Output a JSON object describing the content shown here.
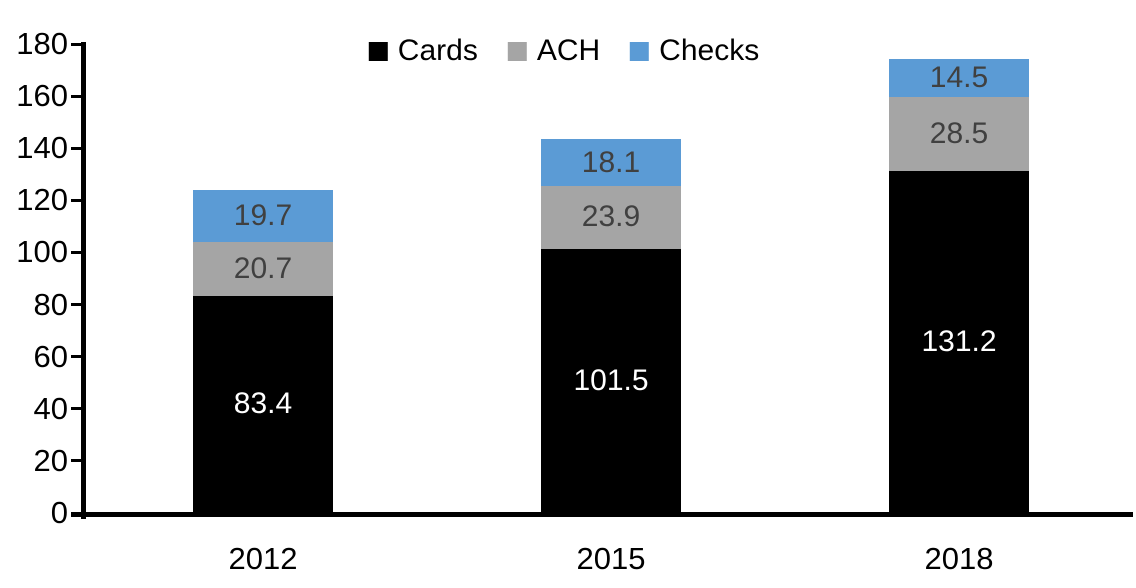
{
  "chart_data": {
    "type": "bar",
    "stacked": true,
    "title": "",
    "xlabel": "",
    "ylabel": "",
    "categories": [
      "2012",
      "2015",
      "2018"
    ],
    "series": [
      {
        "name": "Cards",
        "color": "#000000",
        "label_color": "#ffffff",
        "values": [
          83.4,
          101.5,
          131.2
        ]
      },
      {
        "name": "ACH",
        "color": "#a5a5a5",
        "label_color": "#404040",
        "values": [
          20.7,
          23.9,
          28.5
        ]
      },
      {
        "name": "Checks",
        "color": "#5b9bd5",
        "label_color": "#404040",
        "values": [
          19.7,
          18.1,
          14.5
        ]
      }
    ],
    "totals": [
      123.8,
      143.5,
      174.2
    ],
    "ylim": [
      0,
      180
    ],
    "ytick_step": 20,
    "yticks": [
      0,
      20,
      40,
      60,
      80,
      100,
      120,
      140,
      160,
      180
    ],
    "grid": false,
    "legend_position": "top-center",
    "axis_color": "#000000",
    "background_color": "#ffffff"
  }
}
